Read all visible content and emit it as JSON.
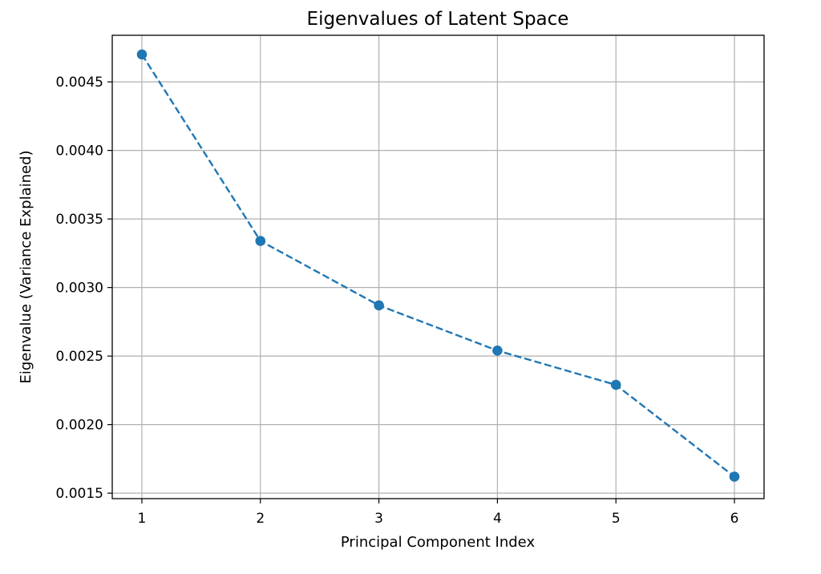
{
  "chart_data": {
    "type": "line",
    "title": "Eigenvalues of Latent Space",
    "xlabel": "Principal Component Index",
    "ylabel": "Eigenvalue (Variance Explained)",
    "x": [
      1,
      2,
      3,
      4,
      5,
      6
    ],
    "xticks": [
      "1",
      "2",
      "3",
      "4",
      "5",
      "6"
    ],
    "yticks": [
      "0.0015",
      "0.0020",
      "0.0025",
      "0.0030",
      "0.0035",
      "0.0040",
      "0.0045"
    ],
    "ytick_values": [
      0.0015,
      0.002,
      0.0025,
      0.003,
      0.0035,
      0.004,
      0.0045
    ],
    "xlim": [
      0.75,
      6.25
    ],
    "ylim": [
      0.00146,
      0.00484
    ],
    "grid": true,
    "series": [
      {
        "values": [
          0.0047,
          0.00334,
          0.00287,
          0.00254,
          0.00229,
          0.00162
        ],
        "line_style": "dashed",
        "marker": "circle",
        "color": "#1f77b4"
      }
    ]
  }
}
